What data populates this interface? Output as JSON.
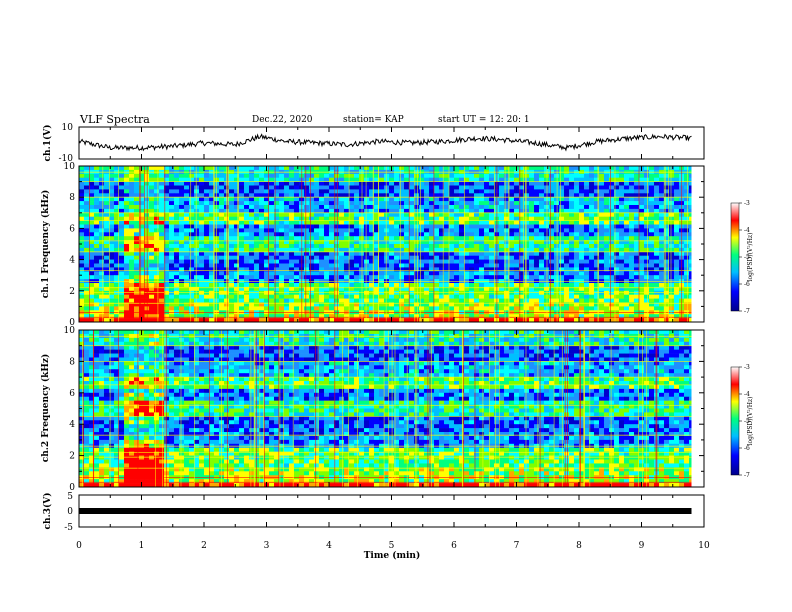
{
  "header": {
    "title": "VLF Spectra",
    "date": "Dec.22, 2020",
    "station": "station= KAP",
    "start": "start  UT =   12: 20: 1"
  },
  "chart_data": [
    {
      "type": "line",
      "name": "ch1-waveform",
      "ylabel": "ch.1(V)",
      "ylim": [
        -10,
        10
      ],
      "yticks": [
        "10",
        "-10"
      ],
      "xlim": [
        0,
        10
      ],
      "x": [
        0,
        0.5,
        1.0,
        1.5,
        2.0,
        2.5,
        2.9,
        3.3,
        3.8,
        4.3,
        4.8,
        5.3,
        5.8,
        6.4,
        6.8,
        7.3,
        7.8,
        8.3,
        8.8,
        9.3,
        9.8
      ],
      "y": [
        1,
        -3,
        -3,
        -2,
        0,
        -1,
        4,
        1,
        0,
        -1,
        1,
        0,
        1,
        3,
        2,
        0,
        -3,
        1,
        3,
        4,
        3
      ]
    },
    {
      "type": "heatmap",
      "name": "ch1-spectrogram",
      "ylabel": "ch.1 Frequency (kHz)",
      "ylim": [
        0,
        10
      ],
      "yticks": [
        "0",
        "2",
        "4",
        "6",
        "8",
        "10"
      ],
      "xlim": [
        0,
        10
      ],
      "colorbar_label": "log(PSD)(V²/Hz)",
      "colorbar_range": [
        -7,
        -3
      ],
      "colorbar_ticks": [
        "-3",
        "-4",
        "-5",
        "-6",
        "-7"
      ]
    },
    {
      "type": "heatmap",
      "name": "ch2-spectrogram",
      "ylabel": "ch.2 Frequency (kHz)",
      "ylim": [
        0,
        10
      ],
      "yticks": [
        "0",
        "2",
        "4",
        "6",
        "8",
        "10"
      ],
      "xlim": [
        0,
        10
      ],
      "colorbar_label": "log(PSD)(V²/Hz)",
      "colorbar_range": [
        -7,
        -3
      ],
      "colorbar_ticks": [
        "-3",
        "-4",
        "-5",
        "-6",
        "-7"
      ]
    },
    {
      "type": "line",
      "name": "ch3-signal",
      "ylabel": "ch.3(V)",
      "ylim": [
        -5,
        5
      ],
      "yticks": [
        "5",
        "0",
        "-5"
      ],
      "xlim": [
        0,
        10
      ],
      "x": [
        0,
        9.8
      ],
      "y": [
        0,
        0
      ]
    }
  ],
  "xaxis": {
    "label": "Time  (min)",
    "ticks": [
      "0",
      "1",
      "2",
      "3",
      "4",
      "5",
      "6",
      "7",
      "8",
      "9",
      "10"
    ]
  },
  "colorscale": [
    "#00008b",
    "#0000ff",
    "#00bfff",
    "#00ff7f",
    "#ffff00",
    "#ff0000",
    "#ffffff"
  ]
}
